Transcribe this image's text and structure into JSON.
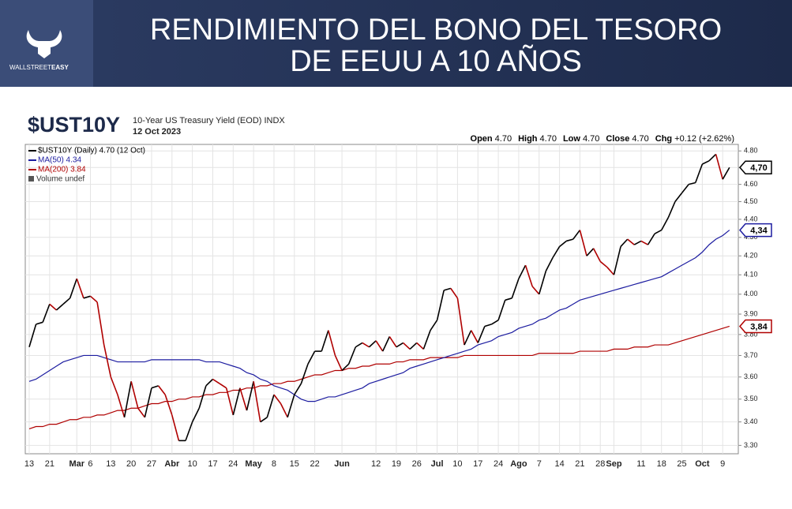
{
  "banner": {
    "title_lines": [
      "RENDIMIENTO DEL BONO DEL TESORO",
      "DE EEUU A 10 AÑOS"
    ],
    "logo": [
      "WALLSTREET",
      "EASY"
    ]
  },
  "chart_data": {
    "type": "line",
    "symbol": "$UST10Y",
    "title": "10-Year US Treasury Yield (EOD) INDX",
    "subtitle": "12 Oct 2023",
    "quote": [
      {
        "label": "Open",
        "value": "4.70"
      },
      {
        "label": "High",
        "value": "4.70"
      },
      {
        "label": "Low",
        "value": "4.70"
      },
      {
        "label": "Close",
        "value": "4.70"
      },
      {
        "label": "Chg",
        "value": "+0.12 (+2.62%)"
      }
    ],
    "volume_note": "Volume undef",
    "log_scale": true,
    "grid": true,
    "legend": "top-left",
    "ylim": [
      3.265,
      4.84
    ],
    "yticks": [
      {
        "value": 3.3,
        "label": "3.30"
      },
      {
        "value": 3.4,
        "label": "3.40"
      },
      {
        "value": 3.5,
        "label": "3.50"
      },
      {
        "value": 3.6,
        "label": "3.60"
      },
      {
        "value": 3.7,
        "label": "3.70"
      },
      {
        "value": 3.8,
        "label": "3.80"
      },
      {
        "value": 3.9,
        "label": "3.90"
      },
      {
        "value": 4.0,
        "label": "4.00"
      },
      {
        "value": 4.1,
        "label": "4.10"
      },
      {
        "value": 4.2,
        "label": "4.20"
      },
      {
        "value": 4.3,
        "label": "4.30"
      },
      {
        "value": 4.4,
        "label": "4.40"
      },
      {
        "value": 4.5,
        "label": "4.50"
      },
      {
        "value": 4.6,
        "label": "4.60"
      },
      {
        "value": 4.7,
        "label": "4.70"
      },
      {
        "value": 4.8,
        "label": "4.80"
      }
    ],
    "categories": [
      "13",
      null,
      null,
      "21",
      null,
      null,
      null,
      "Mar",
      null,
      "6",
      null,
      null,
      "13",
      null,
      null,
      "20",
      null,
      null,
      "27",
      null,
      null,
      "Abr",
      null,
      null,
      "10",
      null,
      null,
      "17",
      null,
      null,
      "24",
      null,
      null,
      "May",
      null,
      null,
      "8",
      null,
      null,
      "15",
      null,
      null,
      "22",
      null,
      null,
      null,
      "Jun",
      null,
      null,
      null,
      null,
      "12",
      null,
      null,
      "19",
      null,
      null,
      "26",
      null,
      null,
      "Jul",
      null,
      null,
      "10",
      null,
      null,
      "17",
      null,
      null,
      "24",
      null,
      null,
      "Ago",
      null,
      null,
      "7",
      null,
      null,
      "14",
      null,
      null,
      "21",
      null,
      null,
      "28",
      null,
      "Sep",
      null,
      null,
      null,
      "11",
      null,
      null,
      "18",
      null,
      null,
      "25",
      null,
      null,
      "Oct",
      null,
      null,
      "9",
      null
    ],
    "series": [
      {
        "name": "$UST10Y (Daily) 4.70 (12 Oct)",
        "color": "#000000",
        "down_color": "#b00000",
        "end_label": "4,70",
        "values": [
          3.74,
          3.85,
          3.86,
          3.95,
          3.92,
          3.95,
          3.98,
          4.08,
          3.98,
          3.99,
          3.96,
          3.75,
          3.6,
          3.52,
          3.42,
          3.58,
          3.46,
          3.42,
          3.55,
          3.56,
          3.52,
          3.43,
          3.32,
          3.32,
          3.4,
          3.46,
          3.56,
          3.59,
          3.57,
          3.55,
          3.43,
          3.55,
          3.45,
          3.58,
          3.4,
          3.42,
          3.52,
          3.48,
          3.42,
          3.52,
          3.57,
          3.66,
          3.72,
          3.72,
          3.82,
          3.7,
          3.63,
          3.66,
          3.74,
          3.76,
          3.74,
          3.77,
          3.72,
          3.79,
          3.74,
          3.76,
          3.73,
          3.76,
          3.73,
          3.82,
          3.87,
          4.02,
          4.03,
          3.98,
          3.75,
          3.82,
          3.76,
          3.84,
          3.85,
          3.87,
          3.97,
          3.98,
          4.08,
          4.15,
          4.04,
          4.0,
          4.12,
          4.19,
          4.25,
          4.28,
          4.29,
          4.34,
          4.2,
          4.24,
          4.17,
          4.14,
          4.1,
          4.25,
          4.29,
          4.26,
          4.28,
          4.26,
          4.32,
          4.34,
          4.41,
          4.5,
          4.55,
          4.6,
          4.61,
          4.72,
          4.74,
          4.78,
          4.63,
          4.7
        ]
      },
      {
        "name": "MA(50) 4.34",
        "color": "#1c1ca0",
        "end_label": "4,34",
        "values": [
          3.58,
          3.59,
          3.61,
          3.63,
          3.65,
          3.67,
          3.68,
          3.69,
          3.7,
          3.7,
          3.7,
          3.69,
          3.68,
          3.67,
          3.67,
          3.67,
          3.67,
          3.67,
          3.68,
          3.68,
          3.68,
          3.68,
          3.68,
          3.68,
          3.68,
          3.68,
          3.67,
          3.67,
          3.67,
          3.66,
          3.65,
          3.64,
          3.62,
          3.61,
          3.59,
          3.58,
          3.56,
          3.55,
          3.54,
          3.52,
          3.5,
          3.49,
          3.49,
          3.5,
          3.51,
          3.51,
          3.52,
          3.53,
          3.54,
          3.55,
          3.57,
          3.58,
          3.59,
          3.6,
          3.61,
          3.62,
          3.64,
          3.65,
          3.66,
          3.67,
          3.68,
          3.69,
          3.7,
          3.71,
          3.72,
          3.73,
          3.75,
          3.76,
          3.77,
          3.79,
          3.8,
          3.81,
          3.83,
          3.84,
          3.85,
          3.87,
          3.88,
          3.9,
          3.92,
          3.93,
          3.95,
          3.97,
          3.98,
          3.99,
          4.0,
          4.01,
          4.02,
          4.03,
          4.04,
          4.05,
          4.06,
          4.07,
          4.08,
          4.09,
          4.11,
          4.13,
          4.15,
          4.17,
          4.19,
          4.22,
          4.26,
          4.29,
          4.31,
          4.34
        ]
      },
      {
        "name": "MA(200) 3.84",
        "color": "#b00000",
        "end_label": "3,84",
        "values": [
          3.37,
          3.38,
          3.38,
          3.39,
          3.39,
          3.4,
          3.41,
          3.41,
          3.42,
          3.42,
          3.43,
          3.43,
          3.44,
          3.45,
          3.45,
          3.46,
          3.46,
          3.47,
          3.48,
          3.48,
          3.49,
          3.49,
          3.5,
          3.5,
          3.51,
          3.51,
          3.52,
          3.52,
          3.53,
          3.53,
          3.54,
          3.54,
          3.55,
          3.55,
          3.56,
          3.56,
          3.57,
          3.57,
          3.58,
          3.58,
          3.59,
          3.6,
          3.61,
          3.61,
          3.62,
          3.63,
          3.63,
          3.64,
          3.64,
          3.65,
          3.65,
          3.66,
          3.66,
          3.66,
          3.67,
          3.67,
          3.68,
          3.68,
          3.68,
          3.69,
          3.69,
          3.69,
          3.69,
          3.69,
          3.7,
          3.7,
          3.7,
          3.7,
          3.7,
          3.7,
          3.7,
          3.7,
          3.7,
          3.7,
          3.7,
          3.71,
          3.71,
          3.71,
          3.71,
          3.71,
          3.71,
          3.72,
          3.72,
          3.72,
          3.72,
          3.72,
          3.73,
          3.73,
          3.73,
          3.74,
          3.74,
          3.74,
          3.75,
          3.75,
          3.75,
          3.76,
          3.77,
          3.78,
          3.79,
          3.8,
          3.81,
          3.82,
          3.83,
          3.84
        ]
      }
    ]
  }
}
